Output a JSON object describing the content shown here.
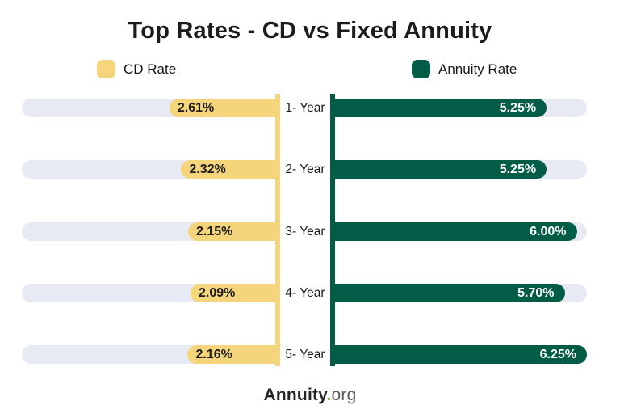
{
  "title": "Top Rates - CD vs Fixed Annuity",
  "legend": {
    "cd_label": "CD Rate",
    "annuity_label": "Annuity Rate"
  },
  "colors": {
    "cd": "#F5D57B",
    "annuity": "#035C45",
    "track": "#E7EAF2",
    "title_text": "#1C1C1C",
    "cd_value_text": "#1C1C1C",
    "annuity_value_text": "#FFFFFF",
    "footer_dot": "#7AC142",
    "footer_org": "#58595B"
  },
  "chart_data": {
    "type": "bar",
    "orientation": "horizontal-diverging",
    "title": "Top Rates - CD vs Fixed Annuity",
    "categories": [
      "1- Year",
      "2- Year",
      "3- Year",
      "4- Year",
      "5- Year"
    ],
    "series": [
      {
        "name": "CD Rate",
        "side": "left",
        "values": [
          2.61,
          2.32,
          2.15,
          2.09,
          2.16
        ],
        "labels": [
          "2.61%",
          "2.32%",
          "2.15%",
          "2.09%",
          "2.16%"
        ]
      },
      {
        "name": "Annuity Rate",
        "side": "right",
        "values": [
          5.25,
          5.25,
          6.0,
          5.7,
          6.25
        ],
        "labels": [
          "5.25%",
          "5.25%",
          "6.00%",
          "5.70%",
          "6.25%"
        ]
      }
    ],
    "xlim": [
      0,
      6.25
    ],
    "grid": false,
    "legend_position": "top"
  },
  "footer": {
    "brand_bold": "Annuity",
    "brand_dot": ".",
    "brand_suffix": "org"
  }
}
